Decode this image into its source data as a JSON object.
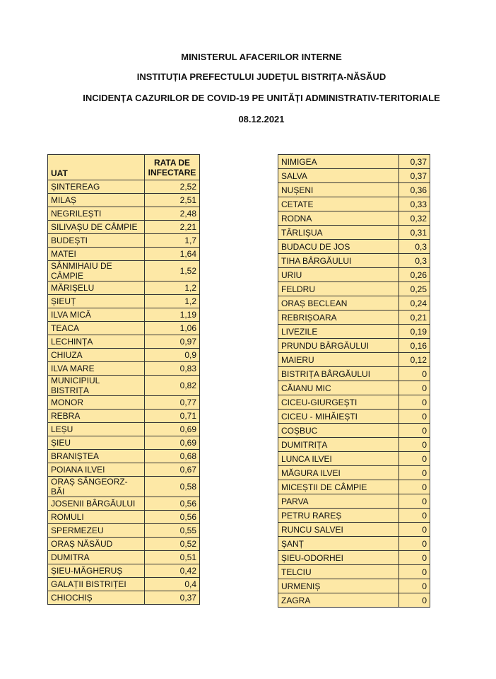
{
  "header": {
    "lines": [
      "MINISTERUL AFACERILOR INTERNE",
      "INSTITUȚIA PREFECTULUI JUDEȚUL BISTRIȚA-NĂSĂUD",
      "INCIDENȚA CAZURILOR DE COVID-19 PE UNITĂȚI ADMINISTRATIV-TERITORIALE",
      "08.12.2021"
    ]
  },
  "left_table": {
    "header": [
      "UAT",
      "RATA DE\nINFECTARE"
    ],
    "rows": [
      [
        "ȘINTEREAG",
        "2,52"
      ],
      [
        "MILAȘ",
        "2,51"
      ],
      [
        "NEGRILEȘTI",
        "2,48"
      ],
      [
        "SILIVAȘU DE CÂMPIE",
        "2,21"
      ],
      [
        "BUDEȘTI",
        "1,7"
      ],
      [
        "MATEI",
        "1,64"
      ],
      [
        "SÂNMIHAIU DE\nCÂMPIE",
        "1,52"
      ],
      [
        "MĂRIȘELU",
        "1,2"
      ],
      [
        "ȘIEUȚ",
        "1,2"
      ],
      [
        "ILVA MICĂ",
        "1,19"
      ],
      [
        "TEACA",
        "1,06"
      ],
      [
        "LECHINȚA",
        "0,97"
      ],
      [
        "CHIUZA",
        "0,9"
      ],
      [
        "ILVA MARE",
        "0,83"
      ],
      [
        "MUNICIPIUL\nBISTRIȚA",
        "0,82"
      ],
      [
        "MONOR",
        "0,77"
      ],
      [
        "REBRA",
        "0,71"
      ],
      [
        "LEȘU",
        "0,69"
      ],
      [
        "ȘIEU",
        "0,69"
      ],
      [
        "BRANIȘTEA",
        "0,68"
      ],
      [
        "POIANA ILVEI",
        "0,67"
      ],
      [
        "ORAȘ SÂNGEORZ-BĂI",
        "0,58"
      ],
      [
        "JOSENII BÂRGĂULUI",
        "0,56"
      ],
      [
        "ROMULI",
        "0,56"
      ],
      [
        "SPERMEZEU",
        "0,55"
      ],
      [
        "ORAȘ NĂSĂUD",
        "0,52"
      ],
      [
        "DUMITRA",
        "0,51"
      ],
      [
        "ȘIEU-MĂGHERUȘ",
        "0,42"
      ],
      [
        "GALAȚII BISTRIȚEI",
        "0,4"
      ],
      [
        "CHIOCHIȘ",
        "0,37"
      ]
    ]
  },
  "right_table": {
    "rows": [
      [
        "NIMIGEA",
        "0,37"
      ],
      [
        "SALVA",
        "0,37"
      ],
      [
        "NUȘENI",
        "0,36"
      ],
      [
        "CETATE",
        "0,33"
      ],
      [
        "RODNA",
        "0,32"
      ],
      [
        "TÂRLIȘUA",
        "0,31"
      ],
      [
        "BUDACU DE JOS",
        "0,3"
      ],
      [
        "TIHA BÂRGĂULUI",
        "0,3"
      ],
      [
        "URIU",
        "0,26"
      ],
      [
        "FELDRU",
        "0,25"
      ],
      [
        "ORAȘ BECLEAN",
        "0,24"
      ],
      [
        "REBRIȘOARA",
        "0,21"
      ],
      [
        "LIVEZILE",
        "0,19"
      ],
      [
        "PRUNDU BÂRGĂULUI",
        "0,16"
      ],
      [
        "MAIERU",
        "0,12"
      ],
      [
        "BISTRIȚA BÂRGĂULUI",
        "0"
      ],
      [
        "CĂIANU MIC",
        "0"
      ],
      [
        "CICEU-GIURGEȘTI",
        "0"
      ],
      [
        "CICEU - MIHĂIEȘTI",
        "0"
      ],
      [
        "COȘBUC",
        "0"
      ],
      [
        "DUMITRIȚA",
        "0"
      ],
      [
        "LUNCA ILVEI",
        "0"
      ],
      [
        "MĂGURA ILVEI",
        "0"
      ],
      [
        "MICEȘTII DE CÂMPIE",
        "0"
      ],
      [
        "PARVA",
        "0"
      ],
      [
        "PETRU RAREȘ",
        "0"
      ],
      [
        "RUNCU SALVEI",
        "0"
      ],
      [
        "ȘANȚ",
        "0"
      ],
      [
        "ȘIEU-ODORHEI",
        "0"
      ],
      [
        "TELCIU",
        "0"
      ],
      [
        "URMENIȘ",
        "0"
      ],
      [
        "ZAGRA",
        "0"
      ]
    ]
  }
}
